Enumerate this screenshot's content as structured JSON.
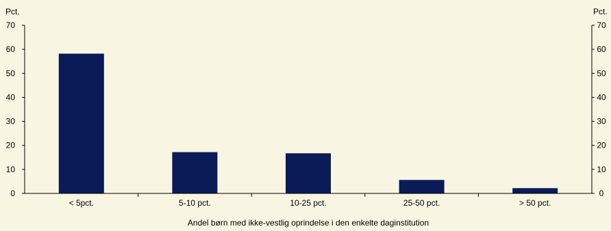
{
  "chart_data": {
    "type": "bar",
    "title": "",
    "xlabel": "Andel børn med ikke-vestlig oprindelse i den enkelte daginstitution",
    "ylabel_left": "Pct.",
    "ylabel_right": "Pct.",
    "categories": [
      "< 5pct.",
      "5-10 pct.",
      "10-25 pct.",
      "25-50 pct.",
      "> 50 pct."
    ],
    "values": [
      58.2,
      17.2,
      16.7,
      5.6,
      2.2
    ],
    "ylim": [
      0,
      70
    ],
    "yticks": [
      0,
      10,
      20,
      30,
      40,
      50,
      60,
      70
    ],
    "bar_color": "#0a1b58",
    "background_color": "#f8f5e2",
    "grid": false,
    "legend": "none"
  }
}
